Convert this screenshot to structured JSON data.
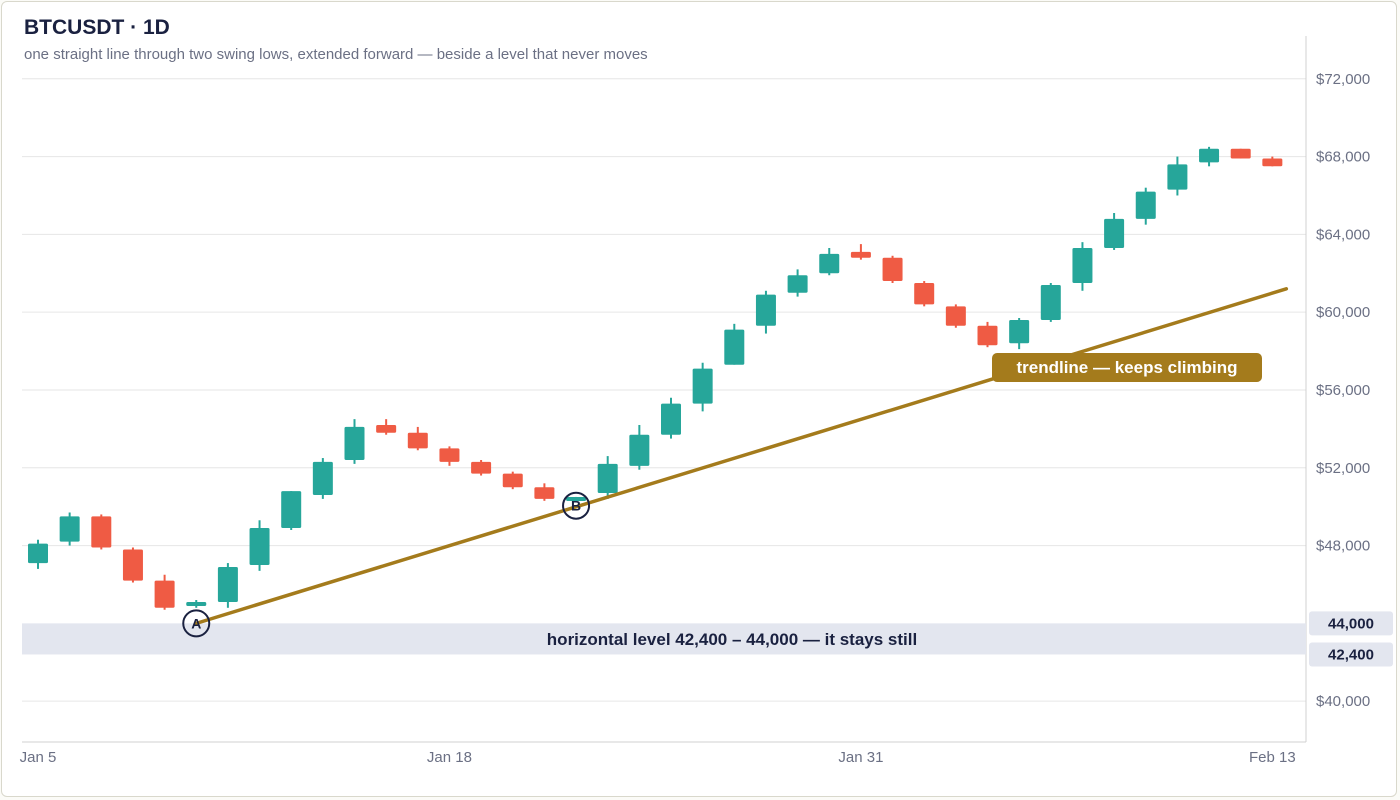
{
  "header": {
    "title": "BTCUSDT · 1D",
    "subtitle": "one straight line through two swing lows, extended forward — beside a level that never moves"
  },
  "colors": {
    "up": "#26a69a",
    "down": "#ef5b44",
    "trendline": "#a47b1c",
    "band": "#e3e6ef",
    "grid": "#e6e6e6",
    "text": "#1a2140",
    "muted": "#6b7084"
  },
  "chart_data": {
    "type": "candlestick",
    "title": "BTCUSDT · 1D",
    "y_ticks": [
      "$40,000",
      "$48,000",
      "$52,000",
      "$56,000",
      "$60,000",
      "$64,000",
      "$68,000",
      "$72,000"
    ],
    "y_tick_values": [
      40000,
      48000,
      52000,
      56000,
      60000,
      64000,
      68000,
      72000
    ],
    "ylim": [
      37900,
      74200
    ],
    "x_ticks": [
      {
        "label": "Jan 5",
        "index": 0
      },
      {
        "label": "Jan 18",
        "index": 13
      },
      {
        "label": "Jan 31",
        "index": 26
      },
      {
        "label": "Feb 13",
        "index": 39
      }
    ],
    "candles": [
      {
        "date": "Jan 5",
        "o": 47100,
        "h": 48300,
        "l": 46800,
        "c": 48100
      },
      {
        "date": "Jan 6",
        "o": 48200,
        "h": 49700,
        "l": 48000,
        "c": 49500
      },
      {
        "date": "Jan 7",
        "o": 49500,
        "h": 49600,
        "l": 47800,
        "c": 47900
      },
      {
        "date": "Jan 8",
        "o": 47800,
        "h": 47900,
        "l": 46100,
        "c": 46200
      },
      {
        "date": "Jan 9",
        "o": 46200,
        "h": 46500,
        "l": 44700,
        "c": 44800
      },
      {
        "date": "Jan 10",
        "o": 44900,
        "h": 45200,
        "l": 44800,
        "c": 45100
      },
      {
        "date": "Jan 11",
        "o": 45100,
        "h": 47100,
        "l": 44800,
        "c": 46900
      },
      {
        "date": "Jan 12",
        "o": 47000,
        "h": 49300,
        "l": 46700,
        "c": 48900
      },
      {
        "date": "Jan 13",
        "o": 48900,
        "h": 50800,
        "l": 48800,
        "c": 50800
      },
      {
        "date": "Jan 14",
        "o": 50600,
        "h": 52500,
        "l": 50400,
        "c": 52300
      },
      {
        "date": "Jan 15",
        "o": 52400,
        "h": 54500,
        "l": 52200,
        "c": 54100
      },
      {
        "date": "Jan 16",
        "o": 54200,
        "h": 54500,
        "l": 53700,
        "c": 53800
      },
      {
        "date": "Jan 17",
        "o": 53800,
        "h": 54100,
        "l": 52900,
        "c": 53000
      },
      {
        "date": "Jan 18",
        "o": 53000,
        "h": 53100,
        "l": 52100,
        "c": 52300
      },
      {
        "date": "Jan 19",
        "o": 52300,
        "h": 52400,
        "l": 51600,
        "c": 51700
      },
      {
        "date": "Jan 20",
        "o": 51700,
        "h": 51800,
        "l": 50900,
        "c": 51000
      },
      {
        "date": "Jan 21",
        "o": 51000,
        "h": 51200,
        "l": 50300,
        "c": 50400
      },
      {
        "date": "Jan 22",
        "o": 50500,
        "h": 50500,
        "l": 50400,
        "c": 50500
      },
      {
        "date": "Jan 23",
        "o": 50700,
        "h": 52600,
        "l": 50400,
        "c": 52200
      },
      {
        "date": "Jan 24",
        "o": 52100,
        "h": 54200,
        "l": 51900,
        "c": 53700
      },
      {
        "date": "Jan 25",
        "o": 53700,
        "h": 55600,
        "l": 53500,
        "c": 55300
      },
      {
        "date": "Jan 26",
        "o": 55300,
        "h": 57400,
        "l": 54900,
        "c": 57100
      },
      {
        "date": "Jan 27",
        "o": 57300,
        "h": 59400,
        "l": 57300,
        "c": 59100
      },
      {
        "date": "Jan 28",
        "o": 59300,
        "h": 61100,
        "l": 58900,
        "c": 60900
      },
      {
        "date": "Jan 29",
        "o": 61000,
        "h": 62200,
        "l": 60800,
        "c": 61900
      },
      {
        "date": "Jan 30",
        "o": 62000,
        "h": 63300,
        "l": 61900,
        "c": 63000
      },
      {
        "date": "Jan 31",
        "o": 63100,
        "h": 63500,
        "l": 62700,
        "c": 62800
      },
      {
        "date": "Feb 1",
        "o": 62800,
        "h": 62900,
        "l": 61500,
        "c": 61600
      },
      {
        "date": "Feb 2",
        "o": 61500,
        "h": 61600,
        "l": 60300,
        "c": 60400
      },
      {
        "date": "Feb 3",
        "o": 60300,
        "h": 60400,
        "l": 59200,
        "c": 59300
      },
      {
        "date": "Feb 4",
        "o": 59300,
        "h": 59500,
        "l": 58200,
        "c": 58300
      },
      {
        "date": "Feb 5",
        "o": 58400,
        "h": 59700,
        "l": 58100,
        "c": 59600
      },
      {
        "date": "Feb 6",
        "o": 59600,
        "h": 61500,
        "l": 59500,
        "c": 61400
      },
      {
        "date": "Feb 7",
        "o": 61500,
        "h": 63600,
        "l": 61100,
        "c": 63300
      },
      {
        "date": "Feb 8",
        "o": 63300,
        "h": 65100,
        "l": 63200,
        "c": 64800
      },
      {
        "date": "Feb 9",
        "o": 64800,
        "h": 66400,
        "l": 64500,
        "c": 66200
      },
      {
        "date": "Feb 10",
        "o": 66300,
        "h": 68000,
        "l": 66000,
        "c": 67600
      },
      {
        "date": "Feb 11",
        "o": 67700,
        "h": 68500,
        "l": 67500,
        "c": 68400
      },
      {
        "date": "Feb 12",
        "o": 68400,
        "h": 68400,
        "l": 67900,
        "c": 67900
      },
      {
        "date": "Feb 13",
        "o": 67900,
        "h": 68000,
        "l": 67500,
        "c": 67500
      }
    ],
    "horizontal_level": {
      "low": 42400,
      "high": 44000,
      "low_label": "42,400",
      "high_label": "44,000",
      "label": "horizontal level 42,400 – 44,000 — it stays still"
    },
    "trendline": {
      "from": {
        "index": 5,
        "price": 44000
      },
      "to": {
        "index": 39,
        "price": 61200
      },
      "label": "trendline — keeps climbing"
    },
    "markers": [
      {
        "label": "A",
        "index": 5,
        "price": 44000
      },
      {
        "label": "B",
        "index": 17,
        "price": 50050
      }
    ],
    "grid": true
  }
}
